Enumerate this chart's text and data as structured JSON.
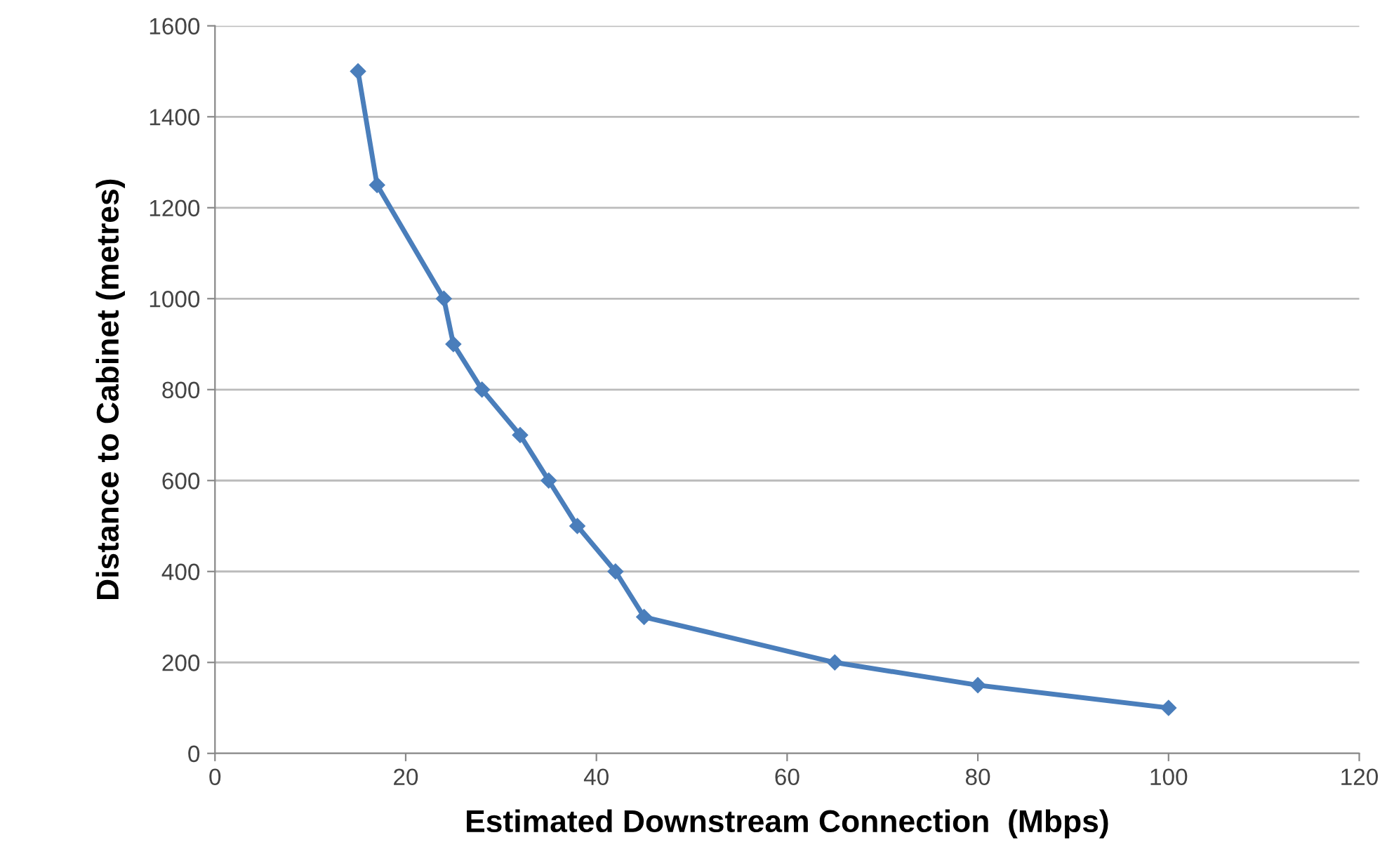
{
  "chart_data": {
    "type": "line",
    "xlabel": "Estimated Downstream Connection  (Mbps)",
    "ylabel": "Distance to Cabinet (metres)",
    "series": [
      {
        "color": "#4a7ebb",
        "x": [
          15,
          17,
          24,
          25,
          28,
          32,
          35,
          38,
          42,
          45,
          65,
          80,
          100
        ],
        "values": [
          1500,
          1250,
          1000,
          900,
          800,
          700,
          600,
          500,
          400,
          300,
          200,
          150,
          100
        ]
      }
    ],
    "xlim": [
      0,
      120
    ],
    "xticks": [
      0,
      20,
      40,
      60,
      80,
      100,
      120
    ],
    "ylim": [
      0,
      1600
    ],
    "yticks": [
      0,
      200,
      400,
      600,
      800,
      1000,
      1200,
      1400,
      1600
    ],
    "grid": "y",
    "marker": "diamond",
    "line_style": "solid"
  }
}
